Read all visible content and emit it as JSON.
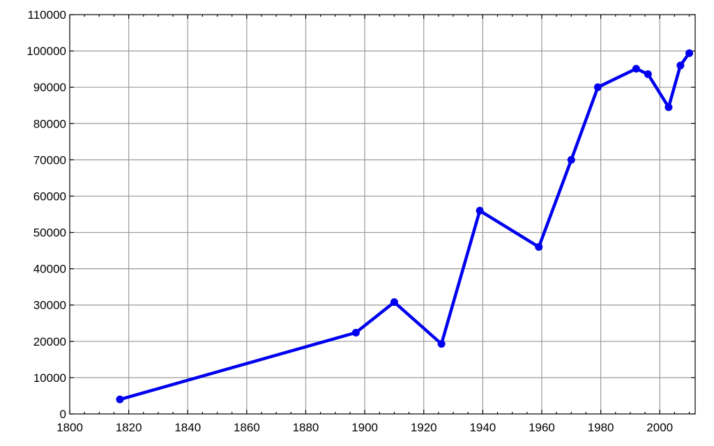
{
  "chart_data": {
    "type": "line",
    "title": "",
    "xlabel": "",
    "ylabel": "",
    "xlim": [
      1800,
      2012
    ],
    "ylim": [
      0,
      110000
    ],
    "x_ticks": [
      1800,
      1820,
      1840,
      1860,
      1880,
      1900,
      1920,
      1940,
      1960,
      1980,
      2000
    ],
    "y_ticks": [
      0,
      10000,
      20000,
      30000,
      40000,
      50000,
      60000,
      70000,
      80000,
      90000,
      100000,
      110000
    ],
    "x_tick_labels": [
      "1800",
      "1820",
      "1840",
      "1860",
      "1880",
      "1900",
      "1920",
      "1940",
      "1960",
      "1980",
      "2000"
    ],
    "y_tick_labels": [
      "0",
      "10000",
      "20000",
      "30000",
      "40000",
      "50000",
      "60000",
      "70000",
      "80000",
      "90000",
      "100000",
      "110000"
    ],
    "grid": true,
    "legend": "none",
    "series": [
      {
        "color": "#0000ee",
        "marker": "circle",
        "x": [
          1817,
          1897,
          1910,
          1926,
          1939,
          1959,
          1970,
          1979,
          1992,
          1996,
          2003,
          2007,
          2010
        ],
        "y": [
          4000,
          22400,
          30800,
          19300,
          56000,
          46000,
          70000,
          90000,
          95100,
          93600,
          84500,
          96000,
          99400
        ]
      }
    ]
  }
}
